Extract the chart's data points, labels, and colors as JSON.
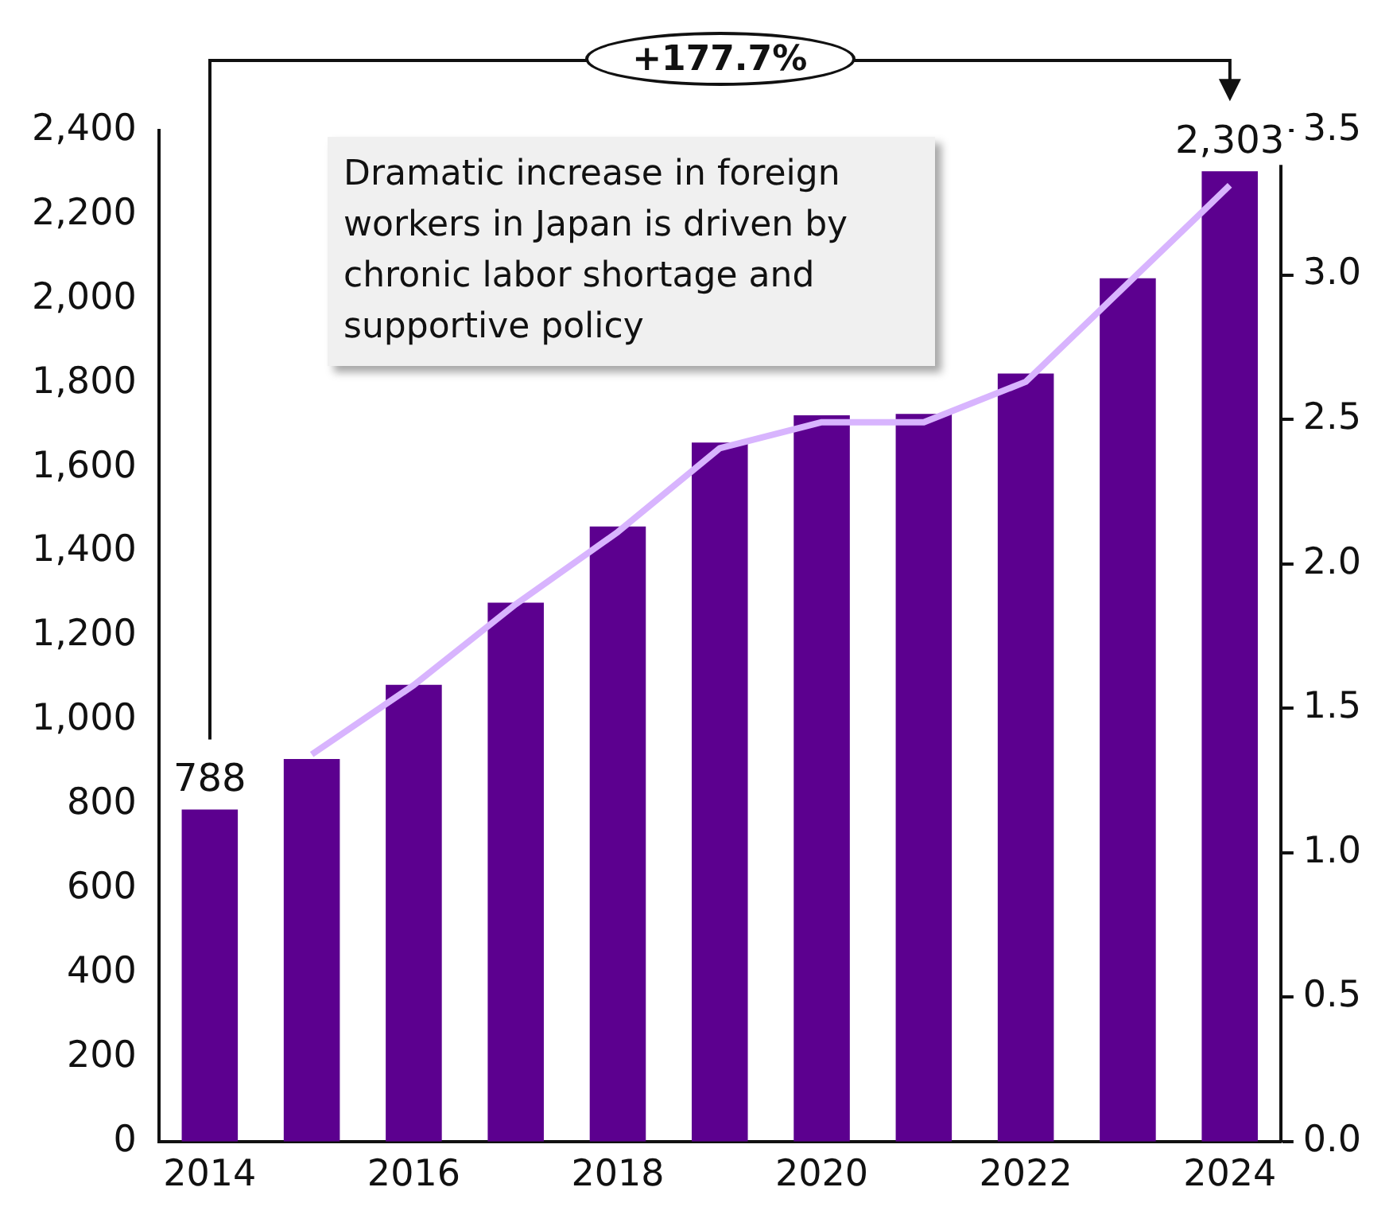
{
  "chart_data": {
    "type": "bar",
    "categories": [
      "2014",
      null,
      "2016",
      null,
      "2018",
      null,
      "2020",
      null,
      "2022",
      null,
      "2024"
    ],
    "series": [
      {
        "color": "#5c008f",
        "values": [
          788,
          908,
          1084,
          1279,
          1460,
          1659,
          1724,
          1727,
          1823,
          2049,
          2303
        ],
        "value_labels": [
          "788",
          null,
          null,
          null,
          null,
          null,
          null,
          null,
          null,
          null,
          "2,303"
        ]
      },
      {
        "type": "line",
        "axis": "y2",
        "color": "#d8b4fe",
        "values": [
          null,
          1.34,
          1.58,
          1.86,
          2.11,
          2.4,
          2.49,
          2.49,
          2.63,
          2.97,
          3.31
        ]
      }
    ],
    "ylim": [
      0,
      2400
    ],
    "yticks": [
      {
        "value": 0,
        "label": "0"
      },
      {
        "value": 200,
        "label": "200"
      },
      {
        "value": 400,
        "label": "400"
      },
      {
        "value": 600,
        "label": "600"
      },
      {
        "value": 800,
        "label": "800"
      },
      {
        "value": 1000,
        "label": "1,000"
      },
      {
        "value": 1200,
        "label": "1,200"
      },
      {
        "value": 1400,
        "label": "1,400"
      },
      {
        "value": 1600,
        "label": "1,600"
      },
      {
        "value": 1800,
        "label": "1,800"
      },
      {
        "value": 2000,
        "label": "2,000"
      },
      {
        "value": 2200,
        "label": "2,200"
      },
      {
        "value": 2400,
        "label": "2,400"
      }
    ],
    "y2lim": [
      0,
      3.5
    ],
    "y2ticks": [
      {
        "value": 0,
        "label": "0.0"
      },
      {
        "value": 0.5,
        "label": "0.5"
      },
      {
        "value": 1,
        "label": "1.0"
      },
      {
        "value": 1.5,
        "label": "1.5"
      },
      {
        "value": 2,
        "label": "2.0"
      },
      {
        "value": 2.5,
        "label": "2.5"
      },
      {
        "value": 3,
        "label": "3.0"
      },
      {
        "value": 3.5,
        "label": "3.5"
      }
    ],
    "grid": false,
    "legend": false,
    "marker": "none",
    "annotations": [
      "+177.7%",
      "Dramatic increase in foreign workers in Japan is driven by chronic labor shortage and supportive policy"
    ]
  }
}
